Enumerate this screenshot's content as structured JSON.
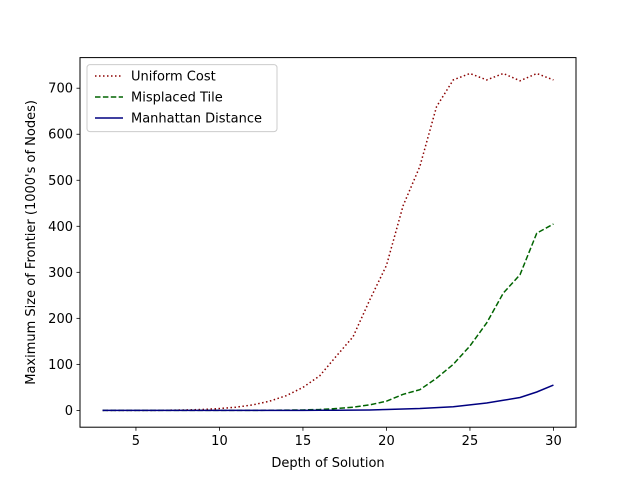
{
  "chart_data": {
    "type": "line",
    "xlabel": "Depth of Solution",
    "ylabel": "Maximum Size of Frontier (1000's of Nodes)",
    "xlim": [
      1.65,
      31.35
    ],
    "ylim": [
      -36.5,
      766.5
    ],
    "xticks": [
      5,
      10,
      15,
      20,
      25,
      30
    ],
    "yticks": [
      0,
      100,
      200,
      300,
      400,
      500,
      600,
      700
    ],
    "grid": false,
    "legend_position": "top-left",
    "x": [
      3,
      4,
      5,
      6,
      7,
      8,
      9,
      10,
      11,
      12,
      13,
      14,
      15,
      16,
      17,
      18,
      19,
      20,
      21,
      22,
      23,
      24,
      25,
      26,
      27,
      28,
      29,
      30
    ],
    "series": [
      {
        "name": "Uniform Cost",
        "color": "#8b0000",
        "style": "dotted",
        "values": [
          0,
          0,
          0,
          0,
          0.5,
          1,
          2,
          4,
          7,
          12,
          20,
          32,
          50,
          75,
          118,
          160,
          240,
          315,
          445,
          530,
          660,
          718,
          732,
          718,
          732,
          716,
          732,
          718
        ]
      },
      {
        "name": "Misplaced Tile",
        "color": "#006400",
        "style": "dashed",
        "values": [
          0,
          0,
          0,
          0,
          0,
          0,
          0,
          0,
          0,
          0,
          0.3,
          0.6,
          1,
          2,
          4,
          7,
          12,
          20,
          35,
          45,
          70,
          100,
          140,
          190,
          255,
          295,
          385,
          405
        ]
      },
      {
        "name": "Manhattan Distance",
        "color": "#000080",
        "style": "solid",
        "values": [
          0,
          0,
          0,
          0,
          0,
          0,
          0,
          0,
          0,
          0,
          0,
          0,
          0,
          0.2,
          0.4,
          0.6,
          1,
          2,
          3,
          4,
          6,
          8,
          12,
          16,
          22,
          28,
          40,
          55
        ]
      }
    ]
  }
}
